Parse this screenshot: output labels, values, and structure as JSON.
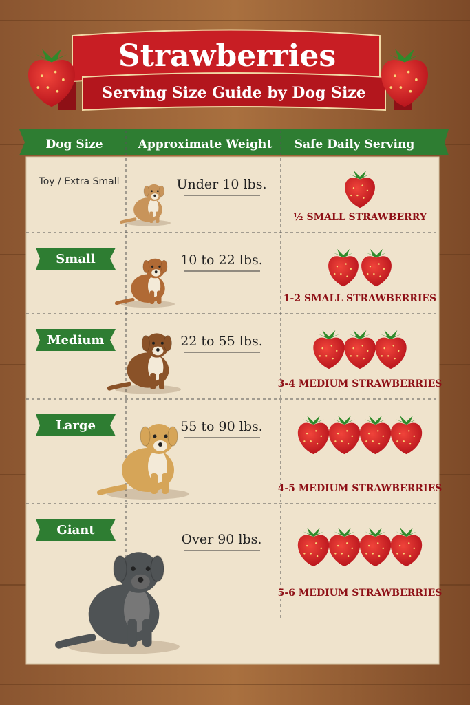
{
  "header": {
    "title": "Strawberries",
    "subtitle": "Serving Size Guide by Dog Size"
  },
  "table": {
    "columns": [
      "Dog Size",
      "Approximate Weight",
      "Safe Daily Serving"
    ],
    "rows": [
      [
        "Toy / Extra Small",
        "Under 10 lbs.",
        "½ SMALL STRAWBERRY"
      ],
      [
        "Small",
        "10 to 22 lbs.",
        "1-2 SMALL STRAWBERRIES"
      ],
      [
        "Medium",
        "22 to 55 lbs.",
        "3-4 MEDIUM STRAWBERRIES"
      ],
      [
        "Large",
        "55 to 90 lbs.",
        "4-5 MEDIUM STRAWBERRIES"
      ],
      [
        "Giant",
        "Over 90 lbs.",
        "5-6 MEDIUM STRAWBERRIES"
      ]
    ]
  }
}
